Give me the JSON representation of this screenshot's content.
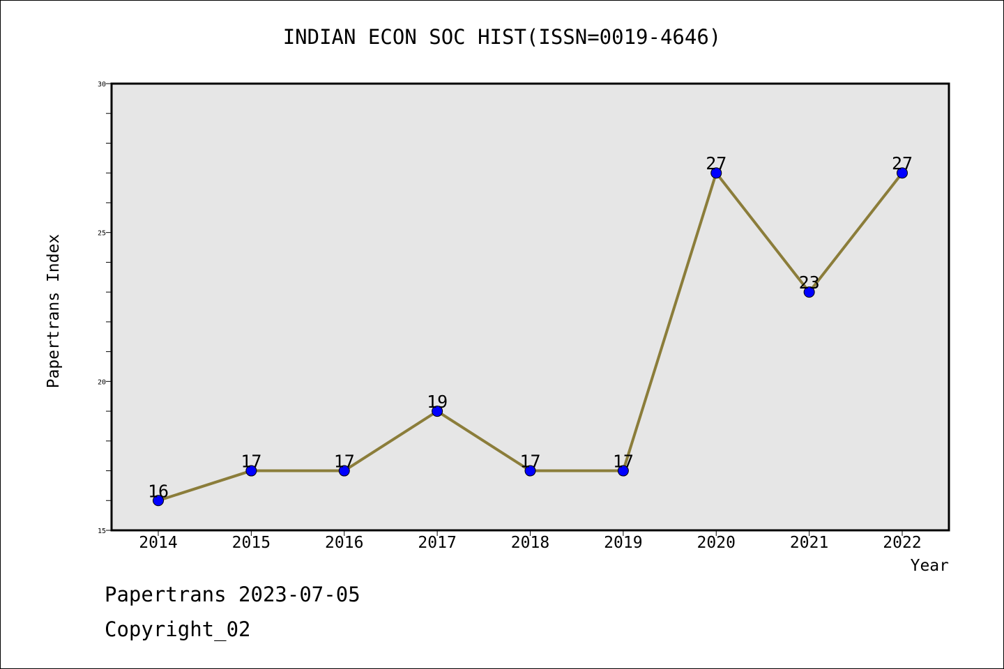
{
  "title": "INDIAN ECON SOC HIST(ISSN=0019-4646)",
  "footer": {
    "line1": "Papertrans 2023-07-05",
    "line2": "Copyright_02"
  },
  "colors": {
    "plot_background": "#e6e6e6",
    "line": "#8b7d3a",
    "marker": "#0000ff"
  },
  "chart_data": {
    "type": "line",
    "title": "INDIAN ECON SOC HIST(ISSN=0019-4646)",
    "xlabel": "Year",
    "ylabel": "Papertrans Index",
    "categories": [
      "2014",
      "2015",
      "2016",
      "2017",
      "2018",
      "2019",
      "2020",
      "2021",
      "2022"
    ],
    "series": [
      {
        "values": [
          16,
          17,
          17,
          19,
          17,
          17,
          27,
          23,
          27
        ]
      }
    ],
    "ylim": [
      15,
      30
    ],
    "yticks": [
      15,
      20,
      25,
      30
    ],
    "data_labels": true,
    "grid": false,
    "legend": "none"
  }
}
